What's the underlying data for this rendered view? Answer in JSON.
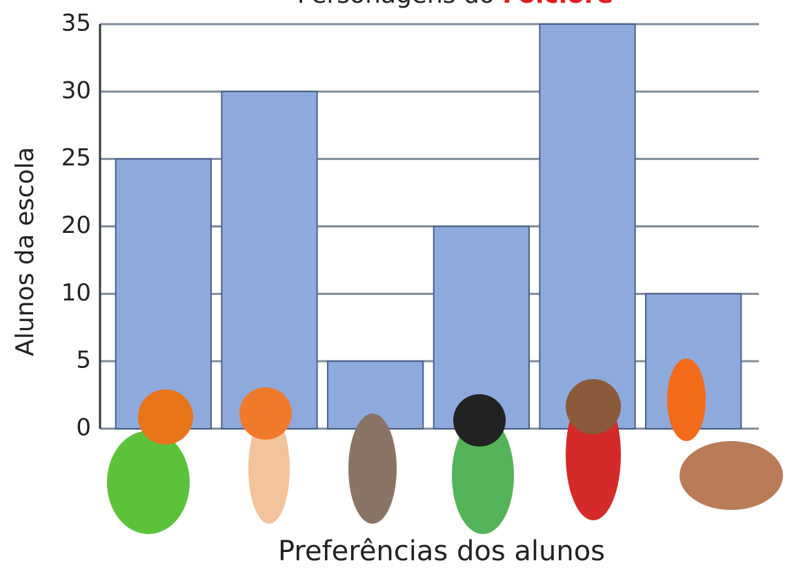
{
  "chart_data": {
    "type": "bar",
    "title": "Personagens do",
    "title_highlight": "Folclore",
    "x_label": "Preferências dos alunos",
    "y_label": "Alunos da escola",
    "categories": [
      null,
      null,
      null,
      null,
      null,
      null
    ],
    "values": [
      25,
      30,
      5,
      20,
      35,
      10
    ],
    "color": "#8eaadc",
    "ylim": [
      0,
      35
    ],
    "yticks": [
      0,
      5,
      10,
      20,
      25,
      30,
      35
    ],
    "grid": true
  }
}
